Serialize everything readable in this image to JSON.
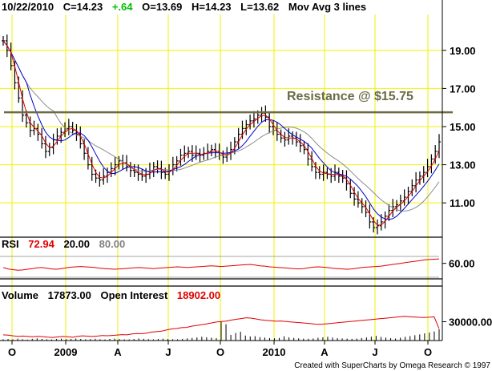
{
  "header": {
    "date": "10/22/2010",
    "close_text": "C=14.23",
    "change_text": "+.64",
    "open_text": "O=13.69",
    "high_text": "H=14.23",
    "low_text": "L=13.62",
    "indicator_text": "Mov Avg 3 lines"
  },
  "annotation": {
    "label": "Resistance @ $15.75",
    "level": 15.75
  },
  "rsi": {
    "label": "RSI",
    "value": "72.94",
    "lower": "20.00",
    "upper": "80.00"
  },
  "volume": {
    "label": "Volume",
    "value": "17873.00",
    "oi_label": "Open Interest",
    "oi_value": "18902.00"
  },
  "footer": {
    "credit": "Created with SuperCharts by Omega Research © 1997"
  },
  "colors": {
    "grid": "#f2f200",
    "bar": "#000000",
    "ma_fast": "#e00000",
    "ma_mid": "#0000cc",
    "ma_slow": "#8c8c8c",
    "resistance": "#6b6b45",
    "rsi_line": "#e00000",
    "rsi_band": "#888888",
    "volume_bar": "#000000",
    "oi_line": "#e00000",
    "change_positive": "#00c000",
    "text": "#000000"
  },
  "chart_data": [
    {
      "type": "ohlc",
      "ylim": [
        9.2,
        20.8
      ],
      "y_ticks": [
        "19.00",
        "17.00",
        "15.00",
        "13.00",
        "11.00"
      ],
      "x_ticks": [
        "O",
        "2009",
        "A",
        "J",
        "O",
        "2010",
        "A",
        "J",
        "O"
      ],
      "moving_averages": 3,
      "closes": [
        19.5,
        19.0,
        18.2,
        17.3,
        16.5,
        15.6,
        15.2,
        14.8,
        14.9,
        14.6,
        14.1,
        13.7,
        13.9,
        14.3,
        14.5,
        14.7,
        14.9,
        15.0,
        14.8,
        14.6,
        14.1,
        13.6,
        13.0,
        12.5,
        12.3,
        12.2,
        12.4,
        12.6,
        12.8,
        13.0,
        13.2,
        13.1,
        12.9,
        12.7,
        12.6,
        12.5,
        12.4,
        12.5,
        12.7,
        12.9,
        12.8,
        12.6,
        12.5,
        12.7,
        13.0,
        13.2,
        13.5,
        13.6,
        13.7,
        13.5,
        13.6,
        13.5,
        13.6,
        13.7,
        13.8,
        13.7,
        13.5,
        13.4,
        13.6,
        13.8,
        14.2,
        14.6,
        14.9,
        15.1,
        15.3,
        15.4,
        15.6,
        15.7,
        15.5,
        15.0,
        14.8,
        14.6,
        14.4,
        14.3,
        14.5,
        14.4,
        14.2,
        14.0,
        13.8,
        13.3,
        12.9,
        12.6,
        12.5,
        12.6,
        12.5,
        12.4,
        12.6,
        12.4,
        12.3,
        12.0,
        11.5,
        11.2,
        11.0,
        10.8,
        10.5,
        10.0,
        9.7,
        9.8,
        10.0,
        10.3,
        10.6,
        10.8,
        10.9,
        11.1,
        11.3,
        11.6,
        11.9,
        12.2,
        12.4,
        12.6,
        12.9,
        13.3,
        13.7,
        14.2
      ]
    },
    {
      "type": "line",
      "title": "RSI",
      "ylim": [
        20,
        80
      ],
      "y_ticks": [
        "60.00"
      ],
      "bands": [
        20,
        80
      ],
      "values": [
        48,
        44,
        42,
        40,
        41,
        43,
        45,
        47,
        48,
        46,
        44,
        43,
        45,
        47,
        49,
        50,
        51,
        50,
        49,
        48,
        46,
        45,
        44,
        43,
        44,
        45,
        46,
        47,
        48,
        47,
        46,
        45,
        46,
        47,
        48,
        49,
        50,
        49,
        48,
        49,
        50,
        51,
        52,
        53,
        52,
        51,
        52,
        53,
        54,
        55,
        56,
        57,
        55,
        53,
        52,
        50,
        49,
        48,
        47,
        46,
        45,
        44,
        45,
        47,
        49,
        50,
        49,
        48,
        46,
        45,
        44,
        43,
        44,
        46,
        48,
        49,
        50,
        51,
        52,
        54,
        56,
        58,
        60,
        62,
        64,
        66,
        68,
        70,
        71,
        72,
        72.94
      ]
    },
    {
      "type": "bar",
      "title": "Volume",
      "ylim": [
        0,
        60000
      ],
      "y_ticks": [
        "30000.00"
      ],
      "values": [
        2000,
        2500,
        1800,
        3000,
        2200,
        1500,
        2800,
        3500,
        2600,
        2000,
        1800,
        2400,
        3000,
        2200,
        2700,
        3200,
        2500,
        2000,
        2300,
        2900,
        2100,
        1700,
        2600,
        3100,
        2400,
        2000,
        1800,
        2500,
        3300,
        2800,
        2200,
        1900,
        2600,
        3000,
        2400,
        2100,
        1900,
        2700,
        3500,
        4200,
        5000,
        6000,
        5200,
        4500,
        3800,
        30000,
        26000,
        9000,
        12000,
        14000,
        8000,
        6500,
        7000,
        5500,
        4800,
        4000,
        3600,
        4200,
        6800,
        5200,
        4100,
        3500,
        3000,
        2800,
        3300,
        4500,
        5200,
        6000,
        4800,
        3900,
        3400,
        3000,
        2700,
        3200,
        4000,
        5000,
        6200,
        7500,
        5800,
        4700,
        3800,
        3200,
        4500,
        6000,
        7200,
        8500,
        9800,
        11500,
        12800,
        14500,
        17873
      ],
      "open_interest": [
        9000,
        8500,
        7500,
        6800,
        7200,
        6500,
        6000,
        6800,
        6200,
        5500,
        5000,
        5800,
        6500,
        6000,
        5200,
        6800,
        7500,
        7000,
        6500,
        7200,
        8000,
        7600,
        8200,
        8800,
        9500,
        9000,
        10500,
        11200,
        10800,
        12000,
        13500,
        14200,
        15000,
        16800,
        18500,
        19200,
        20500,
        21000,
        22800,
        24000,
        25200,
        26500,
        28000,
        29500,
        30200,
        31000,
        32500,
        33800,
        35000,
        36200,
        35800,
        34500,
        33000,
        32200,
        31500,
        30800,
        31200,
        30500,
        29800,
        29000,
        28500,
        27800,
        27000,
        26200,
        25800,
        26500,
        27200,
        28000,
        28800,
        29500,
        30200,
        31000,
        31800,
        32500,
        33200,
        34000,
        34800,
        35500,
        36200,
        37000,
        37800,
        38500,
        38000,
        37500,
        37000,
        36800,
        37200,
        37800,
        18902
      ]
    }
  ]
}
